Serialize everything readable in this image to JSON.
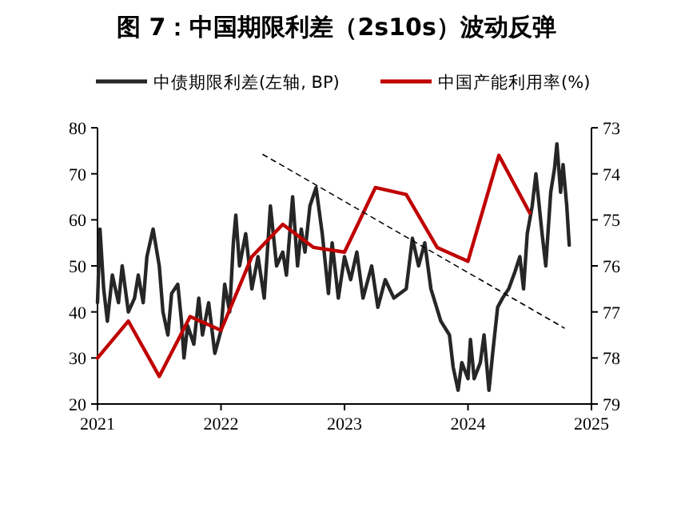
{
  "chart_data": {
    "type": "line",
    "title": "图 7：中国期限利差（2s10s）波动反弹",
    "xlim": [
      2021,
      2025
    ],
    "xticks": [
      2021,
      2022,
      2023,
      2024,
      2025
    ],
    "ylim": [
      20,
      80
    ],
    "yticks": [
      20,
      30,
      40,
      50,
      60,
      70,
      80
    ],
    "y2lim": [
      79,
      73
    ],
    "y2ticks": [
      73,
      74,
      75,
      76,
      77,
      78,
      79
    ],
    "grid": false,
    "legend": "top",
    "marker": "none",
    "series": [
      {
        "name": "中债期限利差(左轴, BP)",
        "color": "#262626",
        "line_style": "solid",
        "x": [
          2021.0,
          2021.02,
          2021.05,
          2021.08,
          2021.12,
          2021.17,
          2021.2,
          2021.25,
          2021.3,
          2021.33,
          2021.37,
          2021.4,
          2021.45,
          2021.5,
          2021.53,
          2021.57,
          2021.6,
          2021.65,
          2021.68,
          2021.7,
          2021.73,
          2021.78,
          2021.82,
          2021.85,
          2021.9,
          2021.95,
          2022.0,
          2022.03,
          2022.07,
          2022.1,
          2022.12,
          2022.15,
          2022.2,
          2022.25,
          2022.3,
          2022.35,
          2022.4,
          2022.45,
          2022.5,
          2022.53,
          2022.58,
          2022.62,
          2022.65,
          2022.68,
          2022.72,
          2022.77,
          2022.82,
          2022.87,
          2022.9,
          2022.95,
          2023.0,
          2023.05,
          2023.1,
          2023.15,
          2023.22,
          2023.27,
          2023.33,
          2023.4,
          2023.5,
          2023.55,
          2023.6,
          2023.65,
          2023.7,
          2023.78,
          2023.85,
          2023.88,
          2023.92,
          2023.95,
          2024.0,
          2024.02,
          2024.05,
          2024.1,
          2024.13,
          2024.17,
          2024.2,
          2024.24,
          2024.28,
          2024.33,
          2024.38,
          2024.42,
          2024.45,
          2024.48,
          2024.52,
          2024.55,
          2024.6,
          2024.63,
          2024.67,
          2024.7,
          2024.72,
          2024.75,
          2024.77,
          2024.8,
          2024.82
        ],
        "values": [
          42,
          58,
          45,
          38,
          48,
          42,
          50,
          40,
          43,
          48,
          42,
          52,
          58,
          50,
          40,
          35,
          44,
          46,
          38,
          30,
          37,
          33,
          43,
          35,
          42,
          31,
          36,
          46,
          40,
          55,
          61,
          50,
          57,
          45,
          52,
          43,
          63,
          50,
          53,
          48,
          65,
          50,
          58,
          53,
          63,
          67,
          57,
          44,
          55,
          43,
          52,
          47,
          53,
          43,
          50,
          41,
          47,
          43,
          45,
          56,
          50,
          55,
          45,
          38,
          35,
          28,
          23,
          29,
          25.5,
          34,
          25.5,
          29,
          35,
          23,
          31,
          41,
          43,
          45,
          48.7,
          52,
          45,
          57,
          63,
          70,
          57,
          50,
          66,
          71,
          76.5,
          66,
          72,
          63,
          54.5
        ]
      },
      {
        "name": "中国产能利用率(%)",
        "color": "#c00000",
        "axis": "y2",
        "line_style": "solid",
        "x": [
          2021.0,
          2021.25,
          2021.5,
          2021.75,
          2022.0,
          2022.25,
          2022.5,
          2022.75,
          2023.0,
          2023.25,
          2023.5,
          2023.75,
          2024.0,
          2024.25,
          2024.5
        ],
        "values": [
          78.0,
          77.2,
          78.4,
          77.1,
          77.4,
          75.8,
          75.1,
          75.6,
          75.7,
          74.3,
          74.45,
          75.6,
          75.9,
          73.6,
          74.85
        ]
      },
      {
        "type": "line",
        "color": "#000000",
        "line_style": "dashed",
        "x": [
          2022.34,
          2024.78
        ],
        "values": [
          74.2,
          36.5
        ]
      }
    ]
  }
}
